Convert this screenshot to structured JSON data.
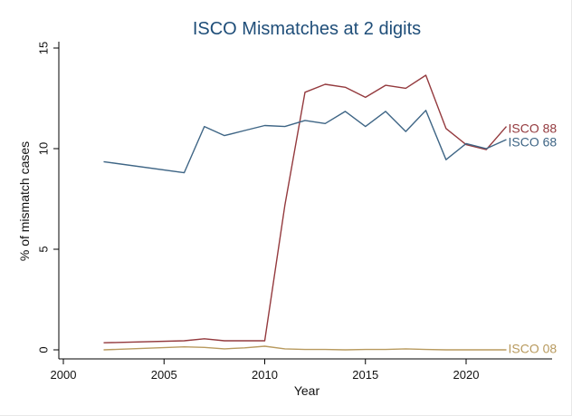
{
  "chart_data": {
    "type": "line",
    "title": "ISCO Mismatches at 2 digits",
    "xlabel": "Year",
    "ylabel": "% of mismatch cases",
    "xlim": [
      2000,
      2024
    ],
    "ylim": [
      0,
      15
    ],
    "xticks": [
      2000,
      2005,
      2010,
      2015,
      2020
    ],
    "yticks": [
      0,
      5,
      10,
      15
    ],
    "x_tick_labels": [
      "2000",
      "2005",
      "2010",
      "2015",
      "2020"
    ],
    "y_tick_labels": [
      "0",
      "5",
      "10",
      "15"
    ],
    "grid": false,
    "legend": "labels at line ends (right)",
    "series": [
      {
        "name": "ISCO 88",
        "color": "#943a3e",
        "x": [
          2002,
          2006,
          2007,
          2008,
          2009,
          2010,
          2011,
          2012,
          2013,
          2014,
          2015,
          2016,
          2017,
          2018,
          2019,
          2020,
          2021,
          2022
        ],
        "y": [
          0.35,
          0.45,
          0.55,
          0.45,
          0.45,
          0.45,
          7.2,
          12.8,
          13.2,
          13.05,
          12.55,
          13.15,
          13.0,
          13.65,
          11.0,
          10.2,
          9.95,
          11.1
        ]
      },
      {
        "name": "ISCO 68",
        "color": "#3e6585",
        "x": [
          2002,
          2006,
          2007,
          2008,
          2009,
          2010,
          2011,
          2012,
          2013,
          2014,
          2015,
          2016,
          2017,
          2018,
          2019,
          2020,
          2021,
          2022
        ],
        "y": [
          9.35,
          8.8,
          11.1,
          10.65,
          10.9,
          11.15,
          11.1,
          11.4,
          11.25,
          11.85,
          11.1,
          11.85,
          10.85,
          11.9,
          9.45,
          10.25,
          10.0,
          10.45
        ]
      },
      {
        "name": "ISCO 08",
        "color": "#b89a5e",
        "x": [
          2002,
          2006,
          2007,
          2008,
          2009,
          2010,
          2011,
          2012,
          2013,
          2014,
          2015,
          2016,
          2017,
          2018,
          2019,
          2020,
          2021,
          2022
        ],
        "y": [
          0.0,
          0.15,
          0.12,
          0.05,
          0.1,
          0.18,
          0.05,
          0.02,
          0.02,
          0.0,
          0.02,
          0.02,
          0.05,
          0.02,
          0.0,
          0.0,
          0.0,
          0.0
        ]
      }
    ]
  }
}
